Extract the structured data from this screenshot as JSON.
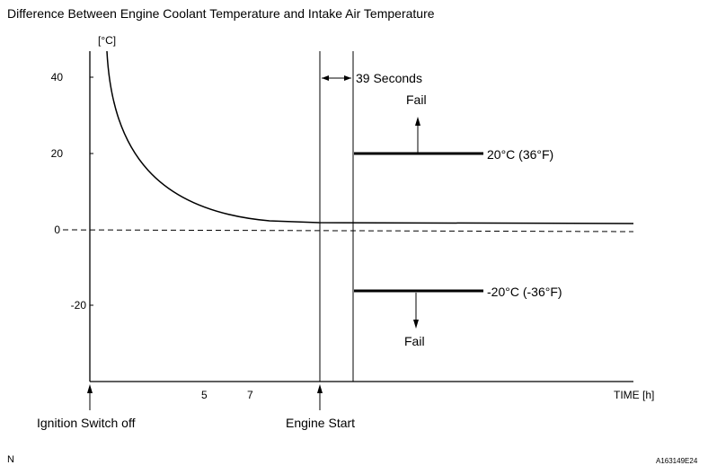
{
  "title": "Difference Between Engine Coolant Temperature and Intake Air Temperature",
  "y_axis": {
    "unit": "[°C]",
    "ticks": [
      "40",
      "20",
      "0",
      "-20"
    ]
  },
  "x_axis": {
    "label": "TIME [h]",
    "ticks": [
      "5",
      "7"
    ]
  },
  "events": {
    "ignition_off": "Ignition Switch off",
    "engine_start": "Engine Start",
    "duration": "39 Seconds"
  },
  "thresholds": {
    "upper": "20°C (36°F)",
    "lower": "-20°C (-36°F)",
    "fail_label": "Fail"
  },
  "footer": {
    "corner_mark": "N",
    "figure_code": "A163149E24"
  },
  "colors": {
    "line": "#000000",
    "background": "#ffffff"
  }
}
